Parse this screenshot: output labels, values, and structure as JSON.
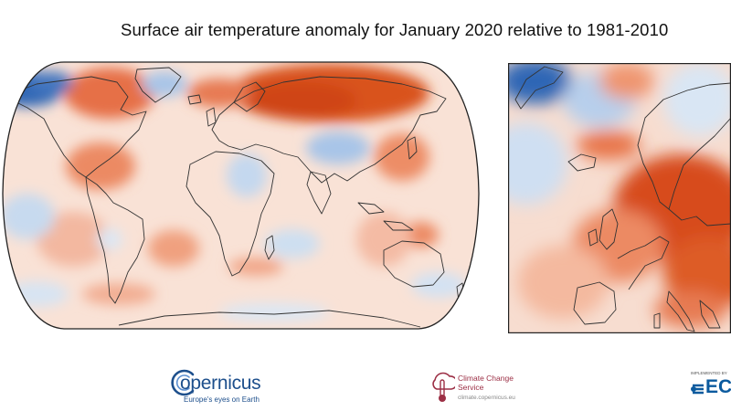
{
  "title": "Surface air temperature anomaly for January 2020 relative to 1981-2010",
  "colors": {
    "warm_strong": "#d24a1c",
    "warm_medium": "#ee8a62",
    "warm_light": "#fbd6c5",
    "neutral": "#f9ece6",
    "cool_light": "#d3e2f3",
    "cool_medium": "#8fb5e0",
    "cool_strong": "#2e66b5",
    "coastline": "#333333",
    "copernicus_blue": "#1d4f8c",
    "c3s_red": "#9c2f45",
    "ecmwf_blue": "#0b5a9e"
  },
  "maps": {
    "world": {
      "name": "global-anomaly-map",
      "projection": "robinson"
    },
    "europe": {
      "name": "europe-anomaly-map",
      "region": "Europe"
    }
  },
  "logos": {
    "copernicus": {
      "wordmark": "opernicus",
      "tagline": "Europe's eyes on Earth"
    },
    "c3s": {
      "name": "Climate Change Service",
      "url": "climate.copernicus.eu"
    },
    "ecmwf": {
      "small_text": "IMPLEMENTED BY",
      "wordmark": "EC"
    }
  }
}
